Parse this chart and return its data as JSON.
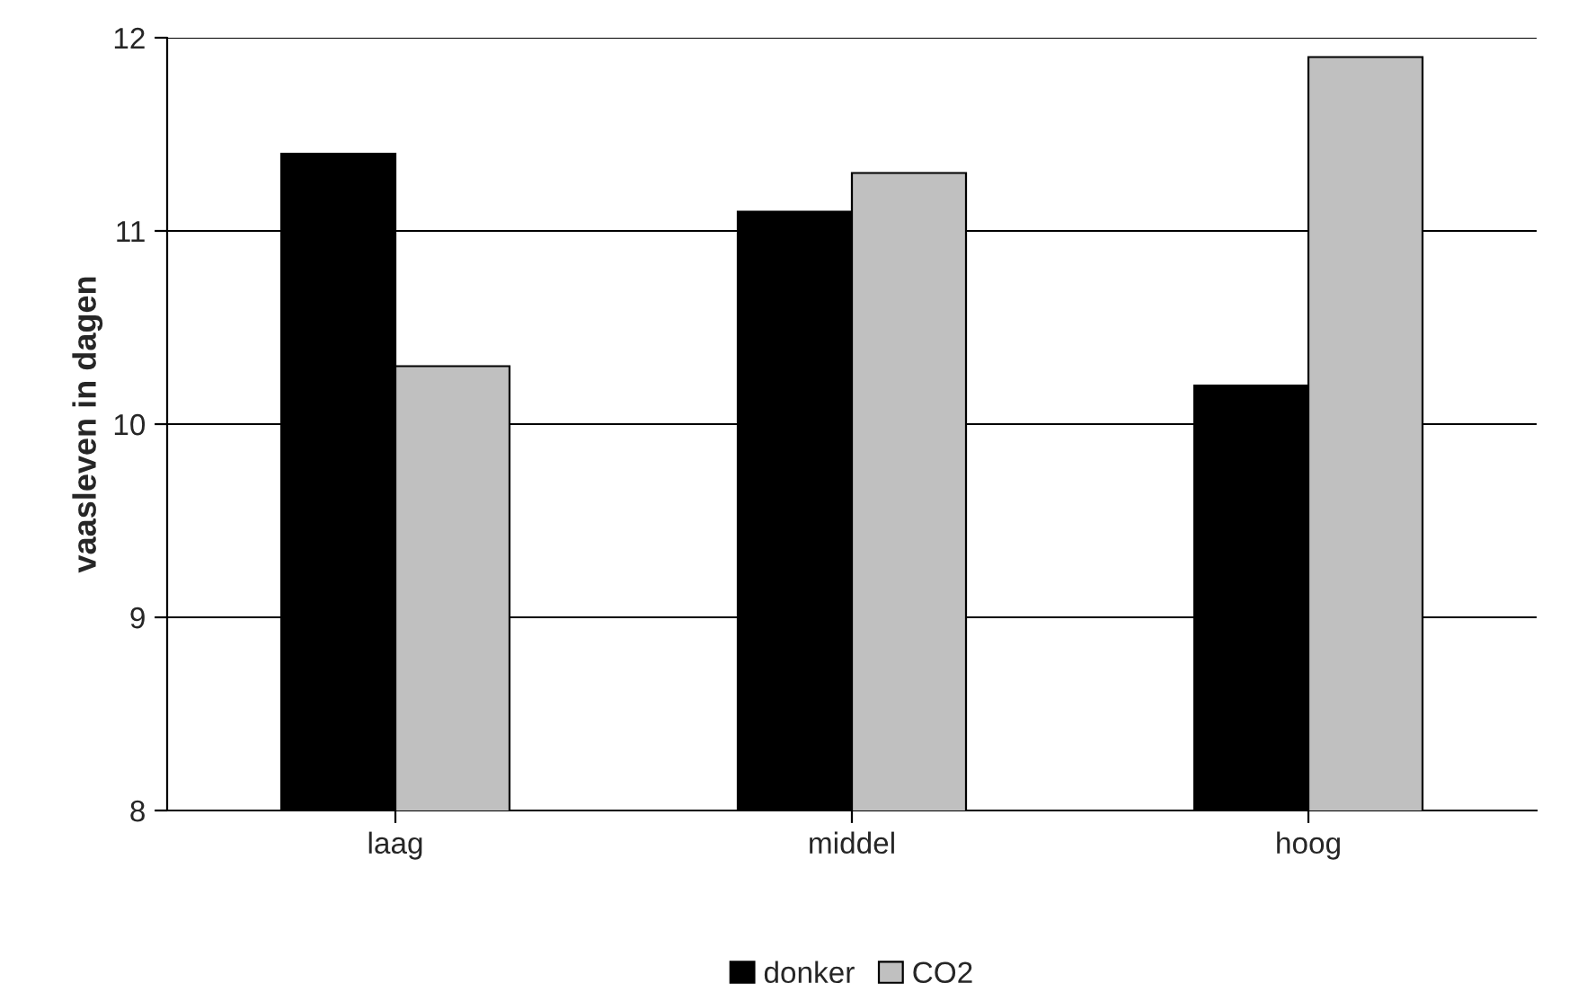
{
  "chart_data": {
    "type": "bar",
    "ylabel": "vaasleven in dagen",
    "categories": [
      "laag",
      "middel",
      "hoog"
    ],
    "series": [
      {
        "name": "donker",
        "color": "#000000",
        "values": [
          11.4,
          11.1,
          10.2
        ]
      },
      {
        "name": "CO2",
        "color": "#c0c0c0",
        "values": [
          10.3,
          11.3,
          11.9
        ]
      }
    ],
    "ylim": [
      8,
      12
    ],
    "yticks": [
      8,
      9,
      10,
      11,
      12
    ],
    "grid": "y",
    "legend": "bottom"
  }
}
